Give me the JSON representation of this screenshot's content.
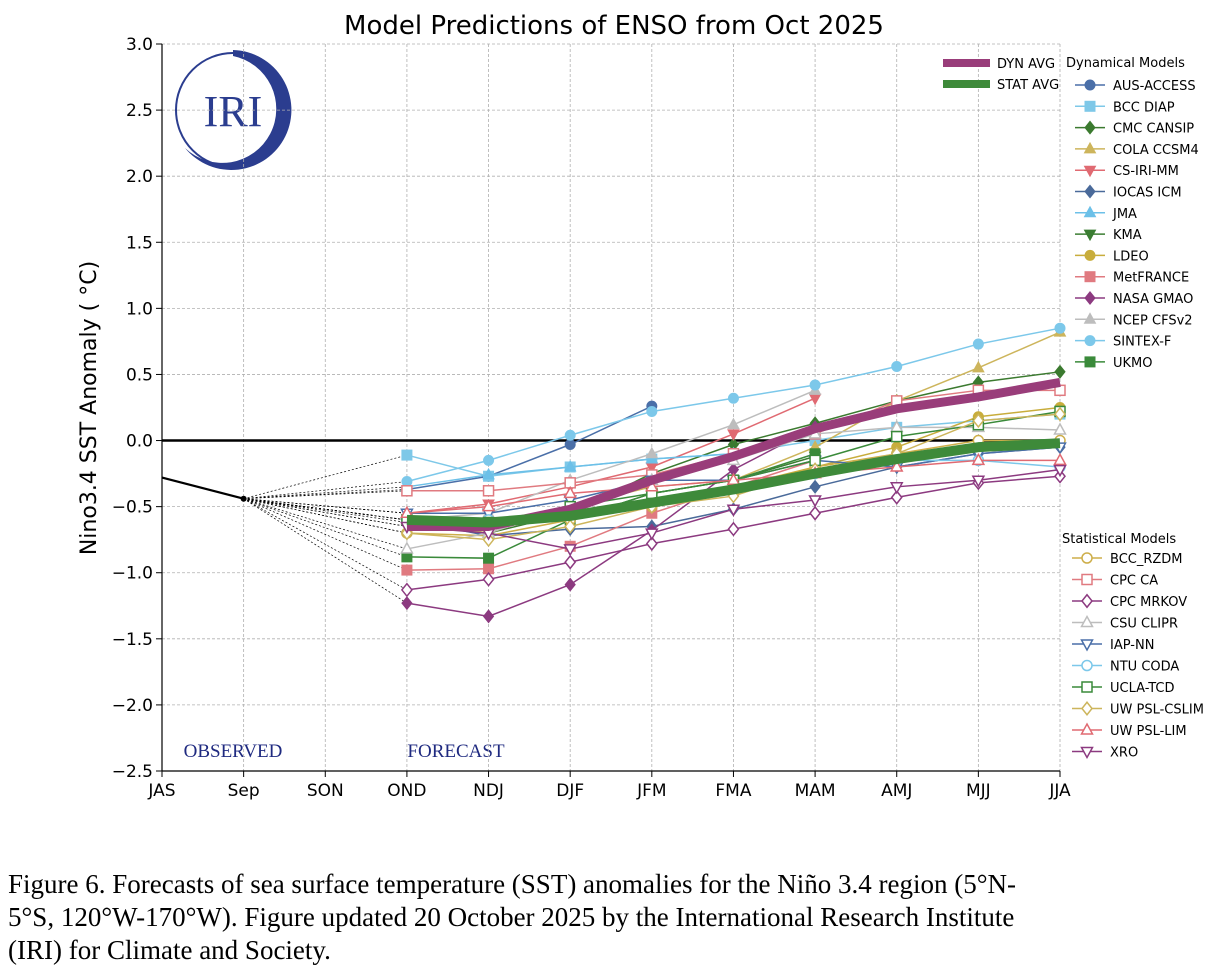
{
  "chart_data": {
    "type": "line",
    "title": "Model Predictions of ENSO from Oct 2025",
    "y_label": "Nino3.4 SST Anomaly ( °C)",
    "logo": "IRI",
    "annotations": {
      "observed": "OBSERVED",
      "forecast": "FORECAST"
    },
    "categories": [
      "JAS",
      "Sep",
      "SON",
      "OND",
      "NDJ",
      "DJF",
      "JFM",
      "FMA",
      "MAM",
      "AMJ",
      "MJJ",
      "JJA"
    ],
    "ylim": [
      -2.5,
      3.0
    ],
    "yticks": [
      {
        "value": 3.0,
        "label": "3.0"
      },
      {
        "value": 2.5,
        "label": "2.5"
      },
      {
        "value": 2.0,
        "label": "2.0"
      },
      {
        "value": 1.5,
        "label": "1.5"
      },
      {
        "value": 1.0,
        "label": "1.0"
      },
      0.5,
      {
        "value": 0.0,
        "label": "0.0"
      },
      {
        "value": -0.5,
        "label": "−0.5"
      },
      {
        "value": -1.0,
        "label": "−1.0"
      },
      {
        "value": -1.5,
        "label": "−1.5"
      },
      {
        "value": -2.0,
        "label": "−2.0"
      },
      {
        "value": -2.5,
        "label": "−2.5"
      }
    ],
    "grid": true,
    "reference_line": 0,
    "observed": {
      "color": "#000000",
      "values": [
        -0.28,
        -0.44,
        null,
        null,
        null,
        null,
        null,
        null,
        null,
        null,
        null,
        null
      ]
    },
    "averages": [
      {
        "name": "DYN AVG",
        "color": "#993d7a",
        "values": [
          null,
          null,
          null,
          -0.65,
          -0.65,
          -0.52,
          -0.3,
          -0.12,
          0.09,
          0.24,
          0.33,
          0.44
        ]
      },
      {
        "name": "STAT AVG",
        "color": "#3e8a3a",
        "values": [
          null,
          null,
          null,
          -0.6,
          -0.62,
          -0.57,
          -0.47,
          -0.37,
          -0.25,
          -0.14,
          -0.05,
          -0.02
        ]
      }
    ],
    "legend_groups": [
      {
        "title": "Dynamical Models",
        "filled": true,
        "series": [
          {
            "name": "AUS-ACCESS",
            "color": "#4a6fa8",
            "marker": "o",
            "values": [
              null,
              null,
              null,
              -0.37,
              -0.27,
              -0.03,
              0.26,
              null,
              null,
              null,
              null,
              null
            ]
          },
          {
            "name": "BCC DIAP",
            "color": "#7ec8e8",
            "marker": "s",
            "values": [
              null,
              null,
              null,
              -0.11,
              -0.27,
              -0.2,
              -0.14,
              -0.1,
              0.0,
              0.1,
              0.15,
              0.2
            ]
          },
          {
            "name": "CMC CANSIP",
            "color": "#3b7a2f",
            "marker": "D",
            "values": [
              null,
              null,
              null,
              -0.62,
              -0.7,
              -0.55,
              -0.25,
              -0.03,
              0.13,
              0.3,
              0.44,
              0.52
            ]
          },
          {
            "name": "COLA CCSM4",
            "color": "#cdb55c",
            "marker": "^",
            "values": [
              null,
              null,
              null,
              -0.6,
              -0.7,
              -0.5,
              -0.35,
              -0.3,
              -0.05,
              0.3,
              0.55,
              0.82
            ]
          },
          {
            "name": "CS-IRI-MM",
            "color": "#e06a72",
            "marker": "v",
            "values": [
              null,
              null,
              null,
              -0.55,
              -0.48,
              -0.35,
              -0.2,
              0.05,
              0.32,
              null,
              null,
              null
            ]
          },
          {
            "name": "IOCAS ICM",
            "color": "#4a6a9a",
            "marker": "D",
            "values": [
              null,
              null,
              null,
              -0.6,
              -0.72,
              -0.67,
              -0.65,
              -0.52,
              -0.35,
              -0.2,
              -0.1,
              -0.05
            ]
          },
          {
            "name": "JMA",
            "color": "#6cc0e8",
            "marker": "^",
            "values": [
              null,
              null,
              null,
              -0.35,
              -0.26,
              -0.2,
              -0.14,
              -0.1,
              0.1,
              null,
              null,
              null
            ]
          },
          {
            "name": "KMA",
            "color": "#3b7d32",
            "marker": "v",
            "values": [
              null,
              null,
              null,
              -0.65,
              -0.62,
              -0.6,
              -0.4,
              -0.3,
              -0.12,
              null,
              null,
              null
            ]
          },
          {
            "name": "LDEO",
            "color": "#c8ad3c",
            "marker": "o",
            "values": [
              null,
              null,
              null,
              -0.6,
              -0.65,
              -0.6,
              -0.45,
              -0.35,
              -0.2,
              -0.05,
              0.18,
              0.25
            ]
          },
          {
            "name": "MetFRANCE",
            "color": "#e07a80",
            "marker": "s",
            "values": [
              null,
              null,
              null,
              -0.98,
              -0.97,
              -0.8,
              -0.55,
              -0.35,
              -0.15,
              null,
              null,
              null
            ]
          },
          {
            "name": "NASA GMAO",
            "color": "#8c3a80",
            "marker": "D",
            "values": [
              null,
              null,
              null,
              -1.23,
              -1.33,
              -1.09,
              -0.68,
              -0.22,
              0.1,
              null,
              null,
              null
            ]
          },
          {
            "name": "NCEP CFSv2",
            "color": "#bdbdbd",
            "marker": "^",
            "values": [
              null,
              null,
              null,
              -0.6,
              -0.55,
              -0.3,
              -0.1,
              0.12,
              0.38,
              null,
              null,
              null
            ]
          },
          {
            "name": "SINTEX-F",
            "color": "#7cc8ea",
            "marker": "o",
            "values": [
              null,
              null,
              null,
              -0.31,
              -0.15,
              0.04,
              0.22,
              0.32,
              0.42,
              0.56,
              0.73,
              0.85
            ]
          },
          {
            "name": "UKMO",
            "color": "#3a8a3a",
            "marker": "s",
            "values": [
              null,
              null,
              null,
              -0.88,
              -0.89,
              -0.6,
              -0.4,
              -0.3,
              -0.1,
              null,
              null,
              null
            ]
          }
        ]
      },
      {
        "title": "Statistical Models",
        "filled": false,
        "series": [
          {
            "name": "BCC_RZDM",
            "color": "#cdae4a",
            "marker": "o",
            "values": [
              null,
              null,
              null,
              -0.7,
              -0.72,
              -0.6,
              -0.5,
              -0.4,
              -0.2,
              -0.1,
              0.0,
              0.0
            ]
          },
          {
            "name": "CPC CA",
            "color": "#e07a80",
            "marker": "s",
            "values": [
              null,
              null,
              null,
              -0.38,
              -0.38,
              -0.32,
              -0.26,
              -0.1,
              0.05,
              0.3,
              0.38,
              0.38
            ]
          },
          {
            "name": "CPC MRKOV",
            "color": "#8c3a80",
            "marker": "D",
            "values": [
              null,
              null,
              null,
              -1.13,
              -1.05,
              -0.92,
              -0.78,
              -0.67,
              -0.55,
              -0.43,
              -0.32,
              -0.27
            ]
          },
          {
            "name": "CSU CLIPR",
            "color": "#bdbdbd",
            "marker": "^",
            "values": [
              null,
              null,
              null,
              -0.82,
              -0.7,
              -0.5,
              -0.3,
              -0.15,
              0.05,
              0.1,
              0.1,
              0.08
            ]
          },
          {
            "name": "IAP-NN",
            "color": "#4a6fa8",
            "marker": "v",
            "values": [
              null,
              null,
              null,
              -0.55,
              -0.55,
              -0.45,
              -0.3,
              -0.3,
              -0.15,
              -0.2,
              -0.1,
              -0.05
            ]
          },
          {
            "name": "NTU CODA",
            "color": "#7cc8ea",
            "marker": "o",
            "values": [
              null,
              null,
              null,
              -0.6,
              -0.6,
              -0.55,
              -0.45,
              -0.35,
              -0.25,
              -0.15,
              -0.15,
              -0.2
            ]
          },
          {
            "name": "UCLA-TCD",
            "color": "#3a8a3a",
            "marker": "s",
            "values": [
              null,
              null,
              null,
              -0.6,
              -0.62,
              -0.5,
              -0.4,
              -0.3,
              -0.15,
              0.03,
              0.12,
              0.22
            ]
          },
          {
            "name": "UW PSL-CSLIM",
            "color": "#cdb55c",
            "marker": "D",
            "values": [
              null,
              null,
              null,
              -0.7,
              -0.75,
              -0.65,
              -0.5,
              -0.42,
              -0.22,
              -0.1,
              0.15,
              0.2
            ]
          },
          {
            "name": "UW PSL-LIM",
            "color": "#e06a72",
            "marker": "^",
            "values": [
              null,
              null,
              null,
              -0.55,
              -0.5,
              -0.4,
              -0.35,
              -0.3,
              -0.25,
              -0.2,
              -0.15,
              -0.15
            ]
          },
          {
            "name": "XRO",
            "color": "#8c3a80",
            "marker": "v",
            "values": [
              null,
              null,
              null,
              -0.65,
              -0.7,
              -0.82,
              -0.7,
              -0.52,
              -0.45,
              -0.35,
              -0.3,
              -0.22
            ]
          }
        ]
      }
    ]
  },
  "caption": [
    "Figure 6. Forecasts of sea surface temperature (SST) anomalies for the Niño 3.4 region (5°N-",
    "5°S, 120°W-170°W). Figure updated 20 October 2025 by the International Research Institute",
    "(IRI) for Climate and Society."
  ]
}
